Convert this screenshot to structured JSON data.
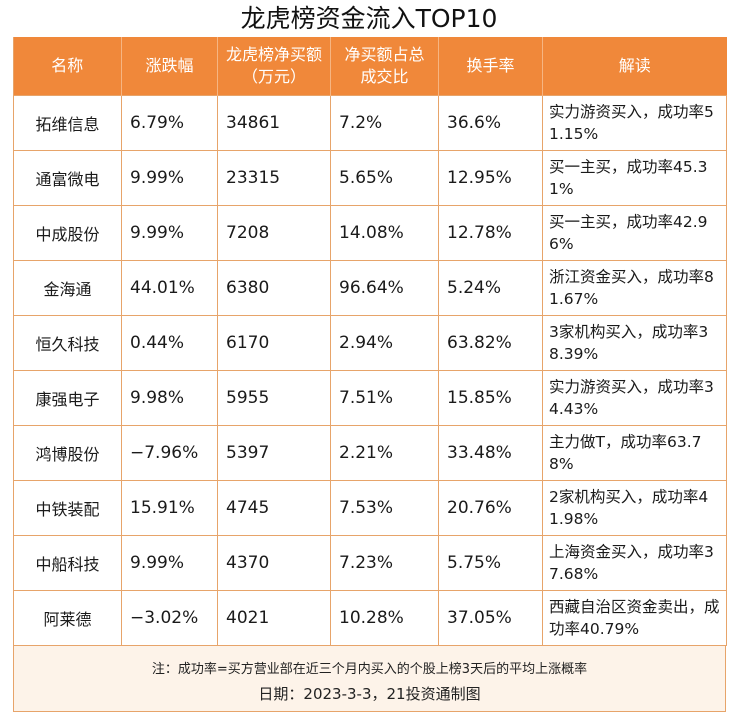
{
  "title": "龙虎榜资金流入TOP10",
  "headers": [
    "名称",
    "涨跌幅",
    "龙虎榜净买额（万元）",
    "净买额占总成交比",
    "换手率",
    "解读"
  ],
  "rows": [
    {
      "name": "拓维信息",
      "change": "6.79%",
      "net_buy": "34861",
      "ratio": "7.2%",
      "turnover": "36.6%",
      "note": "实力游资买入，成功率51.15%"
    },
    {
      "name": "通富微电",
      "change": "9.99%",
      "net_buy": "23315",
      "ratio": "5.65%",
      "turnover": "12.95%",
      "note": "买一主买，成功率45.31%"
    },
    {
      "name": "中成股份",
      "change": "9.99%",
      "net_buy": "7208",
      "ratio": "14.08%",
      "turnover": "12.78%",
      "note": "买一主买，成功率42.96%"
    },
    {
      "name": "金海通",
      "change": "44.01%",
      "net_buy": "6380",
      "ratio": "96.64%",
      "turnover": "5.24%",
      "note": "浙江资金买入，成功率81.67%"
    },
    {
      "name": "恒久科技",
      "change": "0.44%",
      "net_buy": "6170",
      "ratio": "2.94%",
      "turnover": "63.82%",
      "note": "3家机构买入，成功率38.39%"
    },
    {
      "name": "康强电子",
      "change": "9.98%",
      "net_buy": "5955",
      "ratio": "7.51%",
      "turnover": "15.85%",
      "note": "实力游资买入，成功率34.43%"
    },
    {
      "name": "鸿博股份",
      "change": "−7.96%",
      "net_buy": "5397",
      "ratio": "2.21%",
      "turnover": "33.48%",
      "note": "主力做T，成功率63.78%"
    },
    {
      "name": "中铁装配",
      "change": "15.91%",
      "net_buy": "4745",
      "ratio": "7.53%",
      "turnover": "20.76%",
      "note": "2家机构买入，成功率41.98%"
    },
    {
      "name": "中船科技",
      "change": "9.99%",
      "net_buy": "4370",
      "ratio": "7.23%",
      "turnover": "5.75%",
      "note": "上海资金买入，成功率37.68%"
    },
    {
      "name": "阿莱德",
      "change": "−3.02%",
      "net_buy": "4021",
      "ratio": "10.28%",
      "turnover": "37.05%",
      "note": "西藏自治区资金卖出，成功率40.79%"
    }
  ],
  "footnote": "注：成功率=买方营业部在近三个月内买入的个股上榜3天后的平均上涨概率",
  "date_line": "日期：2023-3-3，21投资通制图",
  "colors": {
    "header_bg": "#f0883a",
    "border": "#e7a46a",
    "panel_bg": "#fdf3e9"
  }
}
